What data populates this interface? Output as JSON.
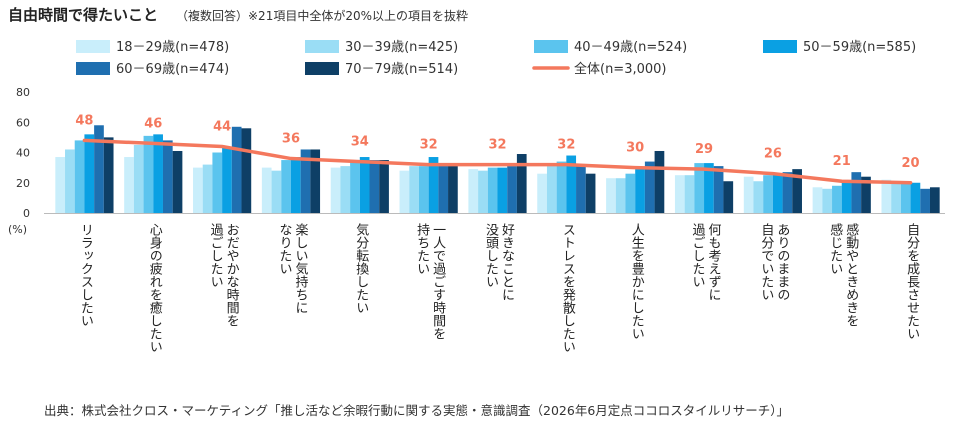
{
  "title": "自由時間で得たいこと",
  "subtitle": "（複数回答）※21項目中全体が20%以上の項目を抜粋",
  "source": "出典：株式会社クロス・マーケティング「推し活など余暇行動に関する実態・意識調査（2026年6月定点ココロスタイルリサーチ）」",
  "chart_data": {
    "type": "bar",
    "y_unit": "(%)",
    "ylim": [
      0,
      80
    ],
    "yticks": [
      0,
      20,
      40,
      60,
      80
    ],
    "legend_position": "top",
    "categories": [
      "リラックスしたい",
      "心身の疲れを癒したい",
      "おだやかな時間を過ごしたい",
      "楽しい気持ちになりたい",
      "気分転換したい",
      "一人で過ごす時間を持ちたい",
      "好きなことに没頭したい",
      "ストレスを発散したい",
      "人生を豊かにしたい",
      "何も考えずに過ごしたい",
      "ありのままの自分でいたい",
      "感動やときめきを感じたい",
      "自分を成長させたい"
    ],
    "category_lines": [
      [
        "リラックスしたい"
      ],
      [
        "心身の疲れを癒したい"
      ],
      [
        "おだやかな時間を",
        "過ごしたい"
      ],
      [
        "楽しい気持ちに",
        "なりたい"
      ],
      [
        "気分転換したい"
      ],
      [
        "一人で過ごす時間を",
        "持ちたい"
      ],
      [
        "好きなことに",
        "没頭したい"
      ],
      [
        "ストレスを発散したい"
      ],
      [
        "人生を豊かにしたい"
      ],
      [
        "何も考えずに",
        "過ごしたい"
      ],
      [
        "ありのままの",
        "自分でいたい"
      ],
      [
        "感動やときめきを",
        "感じたい"
      ],
      [
        "自分を成長させたい"
      ]
    ],
    "series": [
      {
        "name": "18－29歳(n=478)",
        "color": "#C9EEFB",
        "values": [
          37,
          37,
          30,
          30,
          30,
          28,
          29,
          26,
          23,
          25,
          24,
          17,
          22
        ]
      },
      {
        "name": "30－39歳(n=425)",
        "color": "#9ADDF5",
        "values": [
          42,
          45,
          32,
          28,
          31,
          31,
          28,
          31,
          23,
          25,
          21,
          16,
          20
        ]
      },
      {
        "name": "40－49歳(n=524)",
        "color": "#5BC4EE",
        "values": [
          48,
          51,
          40,
          35,
          35,
          31,
          30,
          34,
          26,
          33,
          25,
          18,
          20
        ]
      },
      {
        "name": "50－59歳(n=585)",
        "color": "#0AA0E3",
        "values": [
          52,
          52,
          43,
          37,
          37,
          37,
          30,
          38,
          29,
          33,
          26,
          20,
          20
        ]
      },
      {
        "name": "60－69歳(n=474)",
        "color": "#1F6FB0",
        "values": [
          58,
          48,
          57,
          42,
          35,
          33,
          31,
          31,
          34,
          31,
          27,
          27,
          16
        ]
      },
      {
        "name": "70－79歳(n=514)",
        "color": "#0E3F66",
        "values": [
          50,
          41,
          56,
          42,
          35,
          32,
          39,
          26,
          41,
          21,
          29,
          24,
          17
        ]
      }
    ],
    "total": {
      "name": "全体(n=3,000)",
      "color": "#F4785D",
      "values": [
        48,
        46,
        44,
        36,
        34,
        32,
        32,
        32,
        30,
        29,
        26,
        21,
        20
      ]
    }
  }
}
